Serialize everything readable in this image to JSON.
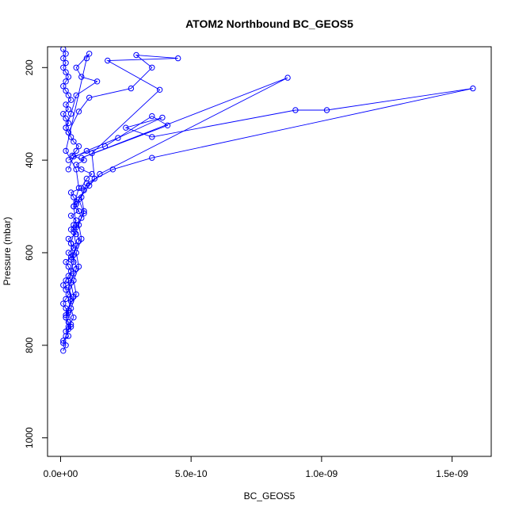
{
  "chart_data": {
    "type": "line",
    "title": "ATOM2 Northbound BC_GEOS5",
    "xlabel": "BC_GEOS5",
    "ylabel": "Pressure (mbar)",
    "xlim": [
      -5e-11,
      1.65e-09
    ],
    "ylim": [
      1040,
      155
    ],
    "y_reversed": true,
    "grid": false,
    "legend": "none",
    "x_ticks": [
      0,
      5e-10,
      1e-09,
      1.5e-09
    ],
    "x_tick_labels": [
      "0.0e+00",
      "5.0e-10",
      "1.0e-09",
      "1.5e-09"
    ],
    "y_ticks": [
      200,
      400,
      600,
      800,
      1000
    ],
    "y_tick_labels": [
      "200",
      "400",
      "600",
      "800",
      "1000"
    ],
    "series": [
      {
        "color": "#0000ff",
        "points": [
          [
            1e-11,
            812
          ],
          [
            2e-11,
            800
          ],
          [
            1e-11,
            790
          ],
          [
            3e-11,
            780
          ],
          [
            2e-11,
            770
          ],
          [
            4e-11,
            760
          ],
          [
            3e-11,
            750
          ],
          [
            2e-11,
            740
          ],
          [
            3e-11,
            730
          ],
          [
            2e-11,
            720
          ],
          [
            1e-11,
            710
          ],
          [
            2e-11,
            700
          ],
          [
            3e-11,
            690
          ],
          [
            2e-11,
            680
          ],
          [
            1e-11,
            670
          ],
          [
            2e-11,
            660
          ],
          [
            3e-11,
            650
          ],
          [
            4e-11,
            640
          ],
          [
            3e-11,
            630
          ],
          [
            2e-11,
            620
          ],
          [
            4e-11,
            610
          ],
          [
            3e-11,
            600
          ],
          [
            5e-11,
            590
          ],
          [
            4e-11,
            580
          ],
          [
            3e-11,
            570
          ],
          [
            6e-11,
            560
          ],
          [
            4e-11,
            550
          ],
          [
            5e-11,
            540
          ],
          [
            6e-11,
            530
          ],
          [
            4e-11,
            520
          ],
          [
            7e-11,
            510
          ],
          [
            5e-11,
            500
          ],
          [
            6e-11,
            490
          ],
          [
            5e-11,
            480
          ],
          [
            4e-11,
            470
          ],
          [
            8e-11,
            460
          ],
          [
            1e-10,
            440
          ],
          [
            1.2e-10,
            430
          ],
          [
            8e-11,
            420
          ],
          [
            6e-11,
            410
          ],
          [
            9e-11,
            400
          ],
          [
            4.5e-11,
            390
          ],
          [
            6e-11,
            380
          ],
          [
            7e-11,
            370
          ],
          [
            5e-11,
            360
          ],
          [
            4e-11,
            350
          ],
          [
            3e-11,
            340
          ],
          [
            2e-11,
            330
          ],
          [
            3e-11,
            320
          ],
          [
            2e-11,
            310
          ],
          [
            1e-11,
            300
          ],
          [
            3e-11,
            290
          ],
          [
            2e-11,
            280
          ],
          [
            4e-11,
            270
          ],
          [
            3e-11,
            260
          ],
          [
            2e-11,
            250
          ],
          [
            1e-11,
            240
          ],
          [
            2e-11,
            230
          ],
          [
            3e-11,
            220
          ],
          [
            2e-11,
            210
          ],
          [
            1e-11,
            200
          ],
          [
            2e-11,
            190
          ],
          [
            1e-11,
            180
          ],
          [
            2e-11,
            170
          ],
          [
            1e-11,
            160
          ]
        ]
      },
      {
        "color": "#0000ff",
        "points": [
          [
            3e-11,
            760
          ],
          [
            5e-11,
            740
          ],
          [
            4e-11,
            720
          ],
          [
            6e-11,
            690
          ],
          [
            5e-11,
            660
          ],
          [
            7e-11,
            630
          ],
          [
            6e-11,
            600
          ],
          [
            8e-11,
            570
          ],
          [
            7e-11,
            540
          ],
          [
            9e-11,
            510
          ],
          [
            8e-11,
            480
          ],
          [
            1e-10,
            450
          ],
          [
            2e-10,
            420
          ],
          [
            3.5e-10,
            395
          ],
          [
            1.58e-09,
            245
          ],
          [
            1.02e-09,
            292
          ],
          [
            9e-10,
            292
          ],
          [
            3.5e-10,
            350
          ],
          [
            2.5e-10,
            330
          ],
          [
            3.9e-10,
            308
          ],
          [
            2.2e-10,
            352
          ],
          [
            1e-10,
            380
          ],
          [
            3e-11,
            400
          ]
        ]
      },
      {
        "color": "#0000ff",
        "points": [
          [
            2e-11,
            780
          ],
          [
            4e-11,
            755
          ],
          [
            3e-11,
            725
          ],
          [
            5e-11,
            695
          ],
          [
            4e-11,
            665
          ],
          [
            6e-11,
            635
          ],
          [
            5e-11,
            605
          ],
          [
            7e-11,
            575
          ],
          [
            6e-11,
            545
          ],
          [
            9e-11,
            515
          ],
          [
            7e-11,
            485
          ],
          [
            1.1e-10,
            455
          ],
          [
            1.5e-10,
            430
          ],
          [
            8.7e-10,
            222
          ],
          [
            8e-11,
            395
          ],
          [
            4.1e-10,
            325
          ],
          [
            3.5e-10,
            305
          ],
          [
            1.7e-10,
            370
          ],
          [
            5e-11,
            392
          ],
          [
            3e-11,
            420
          ]
        ]
      },
      {
        "color": "#0000ff",
        "points": [
          [
            1e-11,
            795
          ],
          [
            3e-11,
            765
          ],
          [
            2e-11,
            735
          ],
          [
            4e-11,
            705
          ],
          [
            3e-11,
            675
          ],
          [
            5e-11,
            645
          ],
          [
            4e-11,
            615
          ],
          [
            6e-11,
            585
          ],
          [
            5e-11,
            555
          ],
          [
            8e-11,
            525
          ],
          [
            6e-11,
            495
          ],
          [
            9e-11,
            465
          ],
          [
            1.3e-10,
            440
          ],
          [
            1.2e-10,
            385
          ],
          [
            3.8e-10,
            248
          ],
          [
            1.8e-10,
            185
          ],
          [
            4.5e-10,
            180
          ],
          [
            2.9e-10,
            173
          ],
          [
            3.5e-10,
            200
          ],
          [
            2.7e-10,
            245
          ],
          [
            1.1e-10,
            265
          ],
          [
            7e-11,
            295
          ],
          [
            3e-11,
            340
          ]
        ]
      },
      {
        "color": "#0000ff",
        "points": [
          [
            2e-11,
            740
          ],
          [
            4e-11,
            700
          ],
          [
            3e-11,
            660
          ],
          [
            5e-11,
            620
          ],
          [
            4e-11,
            580
          ],
          [
            6e-11,
            540
          ],
          [
            5e-11,
            500
          ],
          [
            7e-11,
            460
          ],
          [
            6e-11,
            420
          ],
          [
            2e-11,
            380
          ],
          [
            1e-10,
            180
          ],
          [
            1.1e-10,
            170
          ],
          [
            6e-11,
            200
          ],
          [
            8e-11,
            220
          ],
          [
            1.4e-10,
            230
          ],
          [
            6e-11,
            260
          ],
          [
            4e-11,
            300
          ],
          [
            2e-11,
            330
          ]
        ]
      }
    ]
  }
}
